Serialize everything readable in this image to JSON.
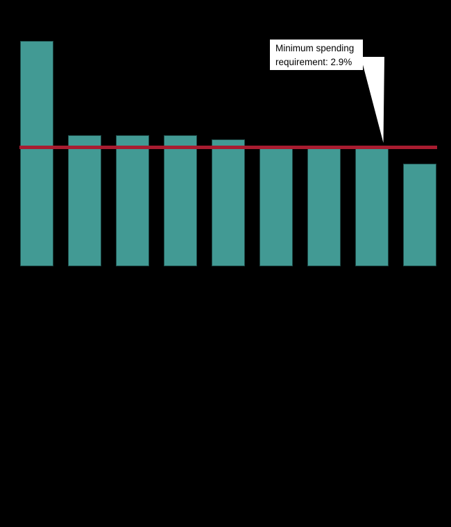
{
  "colors": {
    "background": "#000000",
    "bar_fill": "#429A94",
    "bar_edge": "#1E4B48",
    "reference_line": "#A81C30",
    "annotation_background": "#FFFFFF",
    "annotation_text": "#000000"
  },
  "annotation": {
    "text": "Minimum spending\nrequirement: 2.9%"
  },
  "chart_data": {
    "type": "bar",
    "categories": [
      "",
      "",
      "",
      "",
      "",
      "",
      "",
      "",
      ""
    ],
    "values": [
      5.5,
      3.2,
      3.2,
      3.2,
      3.1,
      2.9,
      2.9,
      2.9,
      2.5
    ],
    "unit": "percent",
    "title": "",
    "xlabel": "",
    "ylabel": "",
    "ylim": [
      0,
      6
    ],
    "grid": false,
    "legend": false,
    "tick_labels_visible": false,
    "reference_line": {
      "value": 2.9,
      "label": "Minimum spending requirement: 2.9%"
    }
  }
}
